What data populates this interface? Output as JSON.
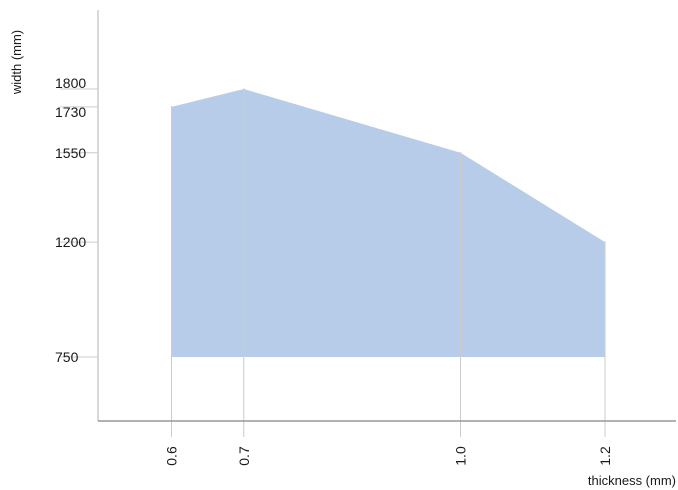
{
  "chart_data": {
    "type": "area",
    "title": "",
    "xlabel": "thickness (mm)",
    "ylabel": "width (mm)",
    "x_ticks": [
      "0.6",
      "0.7",
      "1.0",
      "1.2"
    ],
    "y_ticks": [
      "750",
      "1200",
      "1550",
      "1730",
      "1800"
    ],
    "xlim": [
      0.5,
      1.3
    ],
    "ylim": [
      500,
      2100
    ],
    "grid": true,
    "fill_color": "#b7cce8",
    "grid_color": "#cccccc",
    "series": [
      {
        "x": [
          0.6,
          0.7,
          1.0,
          1.2
        ],
        "upper": [
          1730,
          1800,
          1550,
          1200
        ],
        "lower": [
          750,
          750,
          750,
          750
        ]
      }
    ]
  }
}
